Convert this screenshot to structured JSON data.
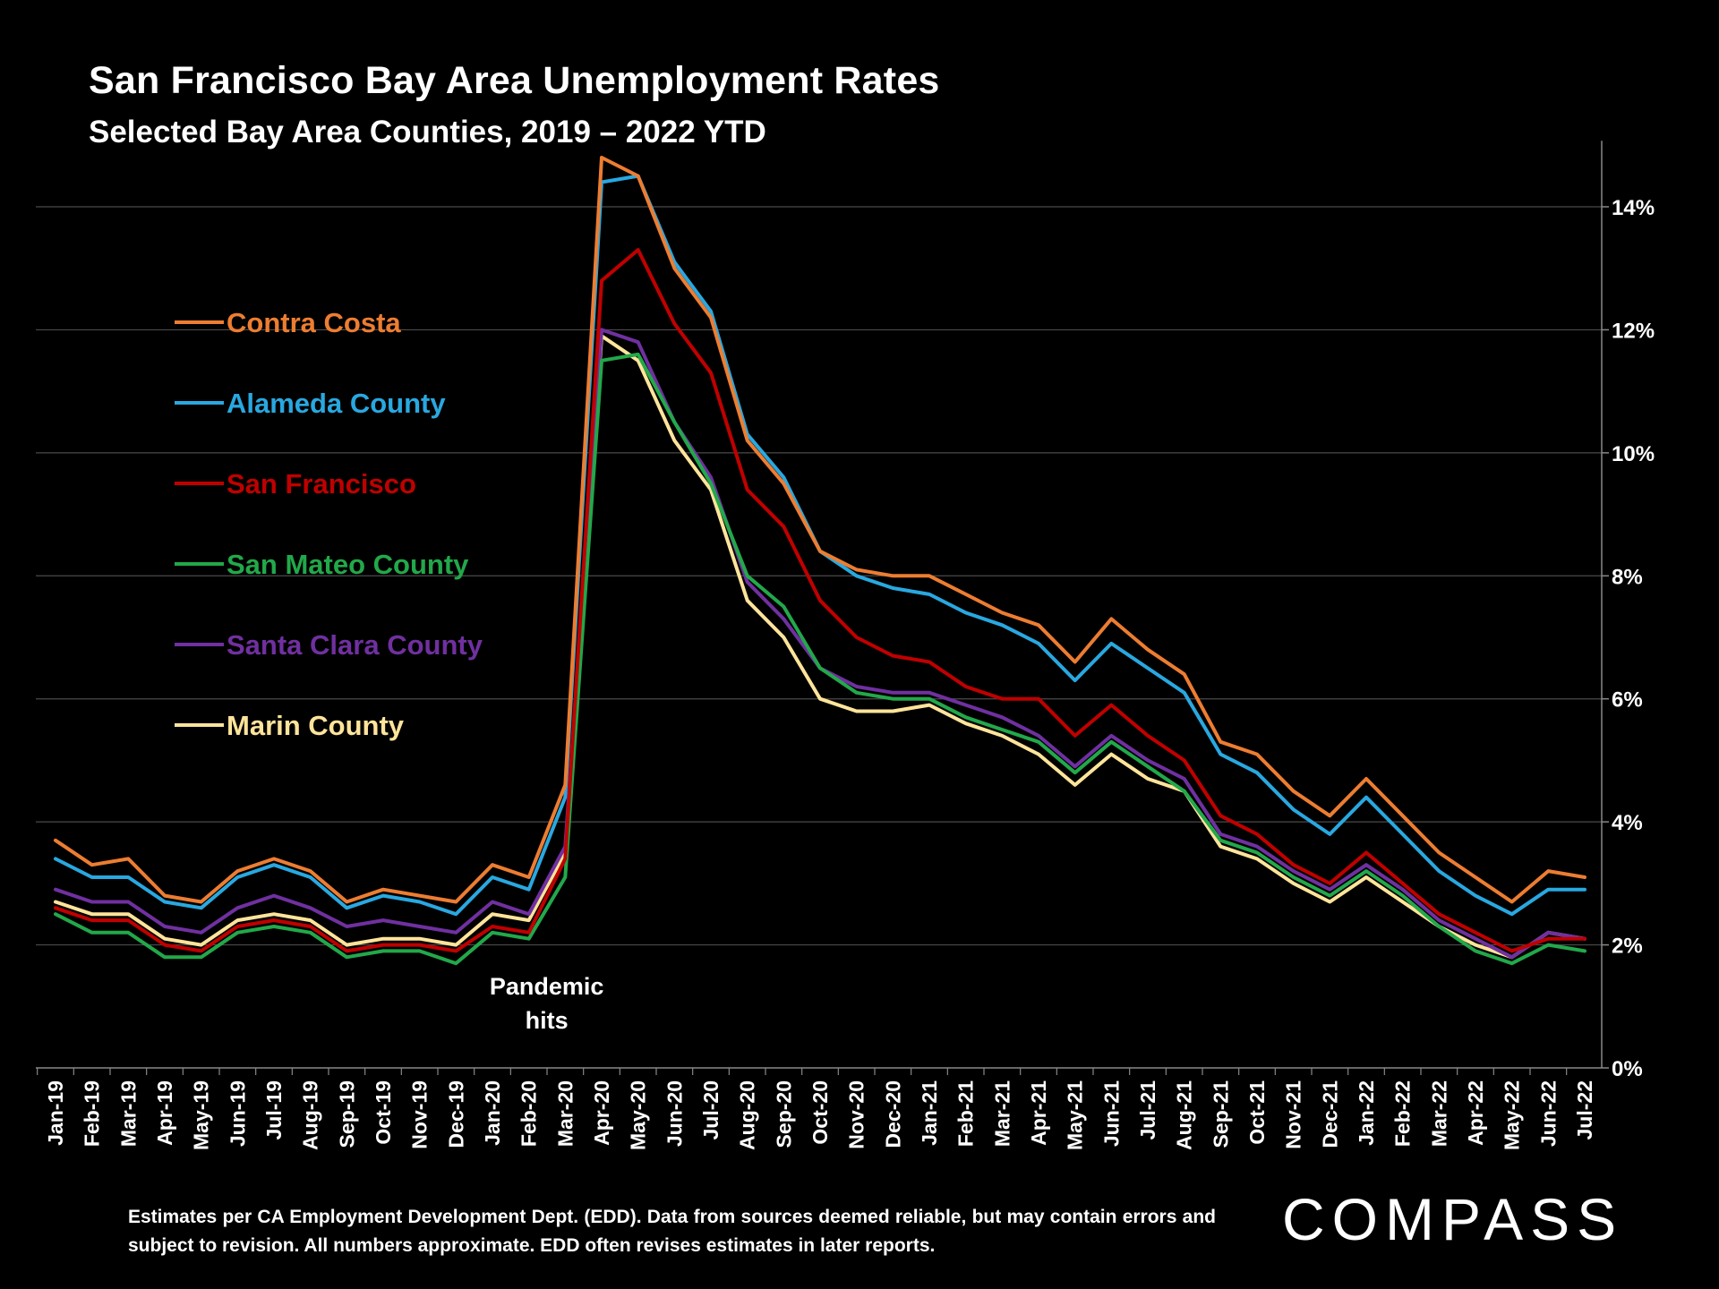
{
  "title": "San Francisco Bay Area Unemployment Rates",
  "subtitle": "Selected Bay Area Counties, 2019 – 2022 YTD",
  "footnote": "Estimates per CA Employment Development Dept. (EDD). Data from sources deemed reliable, but may contain errors and subject to revision. All numbers approximate.  EDD often revises estimates in later reports.",
  "brand": "COMPASS",
  "chart_data": {
    "type": "line",
    "categories": [
      "Jan-19",
      "Feb-19",
      "Mar-19",
      "Apr-19",
      "May-19",
      "Jun-19",
      "Jul-19",
      "Aug-19",
      "Sep-19",
      "Oct-19",
      "Nov-19",
      "Dec-19",
      "Jan-20",
      "Feb-20",
      "Mar-20",
      "Apr-20",
      "May-20",
      "Jun-20",
      "Jul-20",
      "Aug-20",
      "Sep-20",
      "Oct-20",
      "Nov-20",
      "Dec-20",
      "Jan-21",
      "Feb-21",
      "Mar-21",
      "Apr-21",
      "May-21",
      "Jun-21",
      "Jul-21",
      "Aug-21",
      "Sep-21",
      "Oct-21",
      "Nov-21",
      "Dec-21",
      "Jan-22",
      "Feb-22",
      "Mar-22",
      "Apr-22",
      "May-22",
      "Jun-22",
      "Jul-22"
    ],
    "yticks": [
      "0%",
      "2%",
      "4%",
      "6%",
      "8%",
      "10%",
      "12%",
      "14%"
    ],
    "ylim": [
      0,
      15
    ],
    "grid": true,
    "axis_position": "right",
    "annotation": {
      "lines": [
        "Pandemic",
        "hits"
      ],
      "category": "Feb-20",
      "y": 1.4
    },
    "series": [
      {
        "name": "Contra Costa",
        "color": "#ED7D31",
        "values": [
          3.7,
          3.3,
          3.4,
          2.8,
          2.7,
          3.2,
          3.4,
          3.2,
          2.7,
          2.9,
          2.8,
          2.7,
          3.3,
          3.1,
          4.6,
          14.8,
          14.5,
          13.0,
          12.2,
          10.2,
          9.5,
          8.4,
          8.1,
          8.0,
          8.0,
          7.7,
          7.4,
          7.2,
          6.6,
          7.3,
          6.8,
          6.4,
          5.3,
          5.1,
          4.5,
          4.1,
          4.7,
          4.1,
          3.5,
          3.1,
          2.7,
          3.2,
          3.1
        ]
      },
      {
        "name": "Alameda County",
        "color": "#29A8E0",
        "values": [
          3.4,
          3.1,
          3.1,
          2.7,
          2.6,
          3.1,
          3.3,
          3.1,
          2.6,
          2.8,
          2.7,
          2.5,
          3.1,
          2.9,
          4.4,
          14.4,
          14.5,
          13.1,
          12.3,
          10.3,
          9.6,
          8.4,
          8.0,
          7.8,
          7.7,
          7.4,
          7.2,
          6.9,
          6.3,
          6.9,
          6.5,
          6.1,
          5.1,
          4.8,
          4.2,
          3.8,
          4.4,
          3.8,
          3.2,
          2.8,
          2.5,
          2.9,
          2.9
        ]
      },
      {
        "name": "San Francisco",
        "color": "#C00000",
        "values": [
          2.6,
          2.4,
          2.4,
          2.0,
          1.9,
          2.3,
          2.4,
          2.3,
          1.9,
          2.0,
          2.0,
          1.9,
          2.3,
          2.2,
          3.4,
          12.8,
          13.3,
          12.1,
          11.3,
          9.4,
          8.8,
          7.6,
          7.0,
          6.7,
          6.6,
          6.2,
          6.0,
          6.0,
          5.4,
          5.9,
          5.4,
          5.0,
          4.1,
          3.8,
          3.3,
          3.0,
          3.5,
          3.0,
          2.5,
          2.2,
          1.9,
          2.1,
          2.1
        ]
      },
      {
        "name": "San Mateo County",
        "color": "#22A84A",
        "values": [
          2.5,
          2.2,
          2.2,
          1.8,
          1.8,
          2.2,
          2.3,
          2.2,
          1.8,
          1.9,
          1.9,
          1.7,
          2.2,
          2.1,
          3.1,
          11.5,
          11.6,
          10.5,
          9.5,
          8.0,
          7.5,
          6.5,
          6.1,
          6.0,
          6.0,
          5.7,
          5.5,
          5.3,
          4.8,
          5.3,
          4.9,
          4.5,
          3.7,
          3.5,
          3.1,
          2.8,
          3.2,
          2.8,
          2.3,
          1.9,
          1.7,
          2.0,
          1.9
        ]
      },
      {
        "name": "Santa Clara County",
        "color": "#7030A0",
        "values": [
          2.9,
          2.7,
          2.7,
          2.3,
          2.2,
          2.6,
          2.8,
          2.6,
          2.3,
          2.4,
          2.3,
          2.2,
          2.7,
          2.5,
          3.6,
          12.0,
          11.8,
          10.5,
          9.6,
          7.9,
          7.3,
          6.5,
          6.2,
          6.1,
          6.1,
          5.9,
          5.7,
          5.4,
          4.9,
          5.4,
          5.0,
          4.7,
          3.8,
          3.6,
          3.2,
          2.9,
          3.3,
          2.9,
          2.4,
          2.1,
          1.8,
          2.2,
          2.1
        ]
      },
      {
        "name": "Marin County",
        "color": "#FFE49A",
        "values": [
          2.7,
          2.5,
          2.5,
          2.1,
          2.0,
          2.4,
          2.5,
          2.4,
          2.0,
          2.1,
          2.1,
          2.0,
          2.5,
          2.4,
          3.5,
          11.9,
          11.5,
          10.2,
          9.4,
          7.6,
          7.0,
          6.0,
          5.8,
          5.8,
          5.9,
          5.6,
          5.4,
          5.1,
          4.6,
          5.1,
          4.7,
          4.5,
          3.6,
          3.4,
          3.0,
          2.7,
          3.1,
          2.7,
          2.3,
          2.0,
          1.8,
          2.2,
          2.1
        ]
      }
    ]
  }
}
